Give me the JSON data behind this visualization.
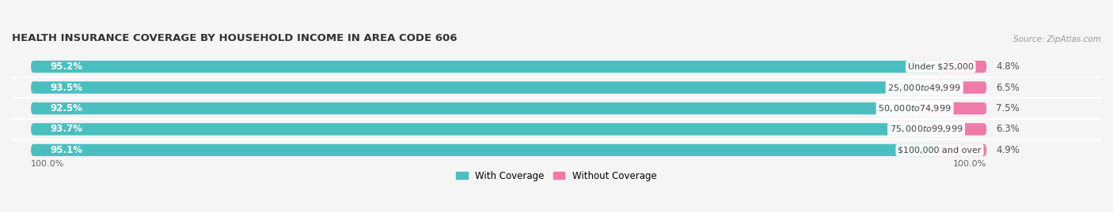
{
  "title": "HEALTH INSURANCE COVERAGE BY HOUSEHOLD INCOME IN AREA CODE 606",
  "source": "Source: ZipAtlas.com",
  "categories": [
    "Under $25,000",
    "$25,000 to $49,999",
    "$50,000 to $74,999",
    "$75,000 to $99,999",
    "$100,000 and over"
  ],
  "with_coverage": [
    95.2,
    93.5,
    92.5,
    93.7,
    95.1
  ],
  "without_coverage": [
    4.8,
    6.5,
    7.5,
    6.3,
    4.9
  ],
  "teal_color": "#4bbfc0",
  "pink_color": "#f07aaa",
  "bar_bg_color": "#e8eaec",
  "bg_color": "#f5f5f5",
  "legend_with": "With Coverage",
  "legend_without": "Without Coverage",
  "total_label": "100.0%",
  "figsize": [
    14.06,
    2.69
  ],
  "dpi": 100
}
